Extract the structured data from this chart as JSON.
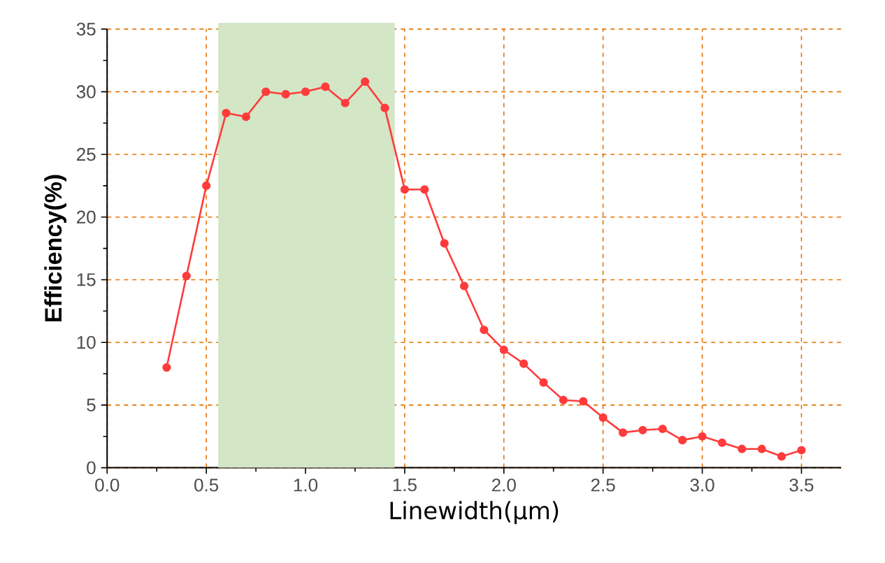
{
  "chart_data": {
    "type": "line",
    "xlabel": "Linewidth(μm)",
    "ylabel": "Efficiency(%)",
    "x": [
      0.3,
      0.4,
      0.5,
      0.6,
      0.7,
      0.8,
      0.9,
      1.0,
      1.1,
      1.2,
      1.3,
      1.4,
      1.5,
      1.6,
      1.7,
      1.8,
      1.9,
      2.0,
      2.1,
      2.2,
      2.3,
      2.4,
      2.5,
      2.6,
      2.7,
      2.8,
      2.9,
      3.0,
      3.1,
      3.2,
      3.3,
      3.4,
      3.5
    ],
    "series": [
      {
        "color": "#ff3b3b",
        "values": [
          8,
          15.3,
          22.5,
          28.3,
          28,
          30,
          29.8,
          30,
          30.4,
          29.1,
          30.8,
          28.7,
          22.2,
          22.2,
          17.9,
          14.5,
          11,
          9.4,
          8.3,
          6.8,
          5.4,
          5.3,
          4,
          2.8,
          3,
          3.1,
          2.2,
          2.5,
          2,
          1.5,
          1.5,
          0.9,
          1.4
        ]
      }
    ],
    "xlim": [
      0,
      3.7
    ],
    "ylim": [
      0,
      35
    ],
    "xticks": [
      {
        "value": 0,
        "label": "0.0"
      },
      {
        "value": 0.5,
        "label": "0.5"
      },
      {
        "value": 1,
        "label": "1.0"
      },
      {
        "value": 1.5,
        "label": "1.5"
      },
      {
        "value": 2,
        "label": "2.0"
      },
      {
        "value": 2.5,
        "label": "2.5"
      },
      {
        "value": 3,
        "label": "3.0"
      },
      {
        "value": 3.5,
        "label": "3.5"
      }
    ],
    "yticks": [
      0,
      5,
      10,
      15,
      20,
      25,
      30,
      35
    ],
    "bands": [
      {
        "axis": "x",
        "from": 0.56,
        "to": 1.45,
        "color": "#d3e6c6"
      }
    ],
    "grid": true,
    "marker": "circle",
    "line_style": "solid"
  }
}
